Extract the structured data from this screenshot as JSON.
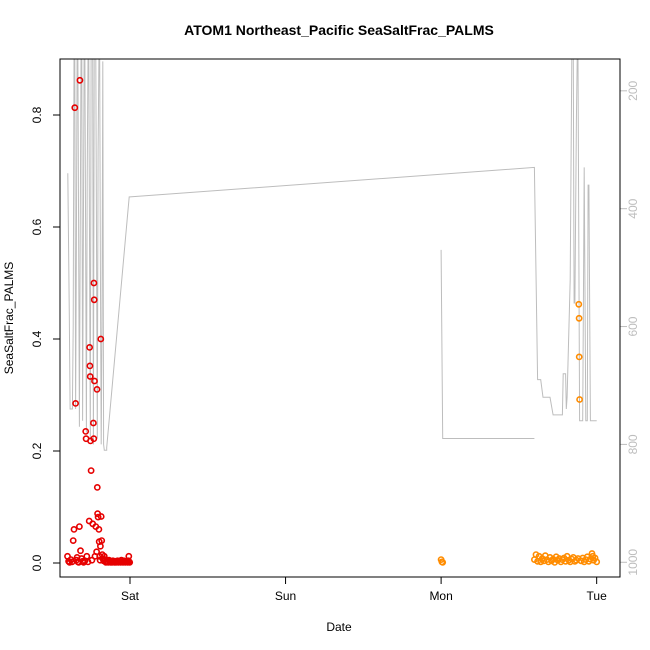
{
  "chart_data": {
    "type": "scatter",
    "title": "ATOM1 Northeast_Pacific SeaSaltFrac_PALMS",
    "xlabel": "Date",
    "ylabel": "SeaSaltFrac_PALMS",
    "x_unit": "days",
    "xlim": [
      -0.45,
      3.15
    ],
    "ylim": [
      -0.025,
      0.9
    ],
    "x_ticks": [
      {
        "value": 0,
        "label": "Sat"
      },
      {
        "value": 1,
        "label": "Sun"
      },
      {
        "value": 2,
        "label": "Mon"
      },
      {
        "value": 3,
        "label": "Tue"
      }
    ],
    "y_ticks": [
      {
        "value": 0.0,
        "label": "0.0"
      },
      {
        "value": 0.2,
        "label": "0.2"
      },
      {
        "value": 0.4,
        "label": "0.4"
      },
      {
        "value": 0.6,
        "label": "0.6"
      },
      {
        "value": 0.8,
        "label": "0.8"
      }
    ],
    "right_axis": {
      "ylim": [
        1025,
        146
      ],
      "color": "#bdbdbd",
      "ticks": [
        {
          "value": 200,
          "label": "200"
        },
        {
          "value": 400,
          "label": "400"
        },
        {
          "value": 600,
          "label": "600"
        },
        {
          "value": 800,
          "label": "800"
        },
        {
          "value": 1000,
          "label": "1000"
        }
      ]
    },
    "grid": false,
    "legend": "none",
    "series": [
      {
        "color": "#e60000",
        "points": [
          [
            -0.402,
            0.012
          ],
          [
            -0.395,
            0.003
          ],
          [
            -0.388,
            0.001
          ],
          [
            -0.38,
            0.006
          ],
          [
            -0.372,
            0.002
          ],
          [
            -0.365,
            0.04
          ],
          [
            -0.36,
            0.06
          ],
          [
            -0.355,
            0.813
          ],
          [
            -0.35,
            0.285
          ],
          [
            -0.345,
            0.005
          ],
          [
            -0.34,
            0.01
          ],
          [
            -0.335,
            0.002
          ],
          [
            -0.33,
            0.001
          ],
          [
            -0.325,
            0.065
          ],
          [
            -0.322,
            0.862
          ],
          [
            -0.318,
            0.022
          ],
          [
            -0.312,
            0.008
          ],
          [
            -0.305,
            0.003
          ],
          [
            -0.298,
            0.001
          ],
          [
            -0.29,
            0.004
          ],
          [
            -0.285,
            0.235
          ],
          [
            -0.282,
            0.222
          ],
          [
            -0.278,
            0.012
          ],
          [
            -0.27,
            0.002
          ],
          [
            -0.262,
            0.075
          ],
          [
            -0.26,
            0.385
          ],
          [
            -0.258,
            0.352
          ],
          [
            -0.256,
            0.333
          ],
          [
            -0.254,
            0.218
          ],
          [
            -0.25,
            0.165
          ],
          [
            -0.245,
            0.005
          ],
          [
            -0.24,
            0.07
          ],
          [
            -0.235,
            0.25
          ],
          [
            -0.233,
            0.222
          ],
          [
            -0.232,
            0.5
          ],
          [
            -0.23,
            0.47
          ],
          [
            -0.228,
            0.325
          ],
          [
            -0.225,
            0.012
          ],
          [
            -0.22,
            0.065
          ],
          [
            -0.215,
            0.02
          ],
          [
            -0.212,
            0.31
          ],
          [
            -0.21,
            0.135
          ],
          [
            -0.208,
            0.088
          ],
          [
            -0.205,
            0.082
          ],
          [
            -0.2,
            0.06
          ],
          [
            -0.198,
            0.038
          ],
          [
            -0.195,
            0.012
          ],
          [
            -0.192,
            0.005
          ],
          [
            -0.19,
            0.03
          ],
          [
            -0.188,
            0.4
          ],
          [
            -0.185,
            0.083
          ],
          [
            -0.182,
            0.04
          ],
          [
            -0.178,
            0.015
          ],
          [
            -0.175,
            0.008
          ],
          [
            -0.17,
            0.004
          ],
          [
            -0.165,
            0.012
          ],
          [
            -0.16,
            0.006
          ],
          [
            -0.155,
            0.001
          ],
          [
            -0.15,
            0.003
          ],
          [
            -0.145,
            0.002
          ],
          [
            -0.14,
            0.001
          ],
          [
            -0.135,
            0.005
          ],
          [
            -0.13,
            0.003
          ],
          [
            -0.125,
            0.001
          ],
          [
            -0.12,
            0.002
          ],
          [
            -0.115,
            0.001
          ],
          [
            -0.11,
            0.004
          ],
          [
            -0.105,
            0.002
          ],
          [
            -0.1,
            0.001
          ],
          [
            -0.095,
            0.003
          ],
          [
            -0.09,
            0.001
          ],
          [
            -0.085,
            0.002
          ],
          [
            -0.08,
            0.004
          ],
          [
            -0.075,
            0.001
          ],
          [
            -0.07,
            0.002
          ],
          [
            -0.065,
            0.003
          ],
          [
            -0.06,
            0.001
          ],
          [
            -0.055,
            0.005
          ],
          [
            -0.05,
            0.002
          ],
          [
            -0.045,
            0.001
          ],
          [
            -0.04,
            0.004
          ],
          [
            -0.035,
            0.002
          ],
          [
            -0.03,
            0.001
          ],
          [
            -0.025,
            0.003
          ],
          [
            -0.02,
            0.002
          ],
          [
            -0.015,
            0.001
          ],
          [
            -0.01,
            0.004
          ],
          [
            -0.008,
            0.012
          ],
          [
            -0.005,
            0.002
          ],
          [
            -0.002,
            0.001
          ]
        ]
      },
      {
        "color": "#ff8c00",
        "points": [
          [
            2.0,
            0.006
          ],
          [
            2.005,
            0.002
          ],
          [
            2.01,
            0.001
          ],
          [
            2.6,
            0.006
          ],
          [
            2.61,
            0.015
          ],
          [
            2.62,
            0.003
          ],
          [
            2.63,
            0.012
          ],
          [
            2.64,
            0.002
          ],
          [
            2.65,
            0.008
          ],
          [
            2.66,
            0.004
          ],
          [
            2.67,
            0.013
          ],
          [
            2.68,
            0.006
          ],
          [
            2.69,
            0.002
          ],
          [
            2.7,
            0.01
          ],
          [
            2.71,
            0.004
          ],
          [
            2.72,
            0.007
          ],
          [
            2.73,
            0.001
          ],
          [
            2.74,
            0.011
          ],
          [
            2.75,
            0.005
          ],
          [
            2.76,
            0.008
          ],
          [
            2.77,
            0.002
          ],
          [
            2.78,
            0.006
          ],
          [
            2.79,
            0.009
          ],
          [
            2.8,
            0.003
          ],
          [
            2.81,
            0.012
          ],
          [
            2.82,
            0.005
          ],
          [
            2.83,
            0.002
          ],
          [
            2.84,
            0.007
          ],
          [
            2.85,
            0.01
          ],
          [
            2.86,
            0.003
          ],
          [
            2.87,
            0.005
          ],
          [
            2.88,
            0.008
          ],
          [
            2.885,
            0.462
          ],
          [
            2.887,
            0.437
          ],
          [
            2.888,
            0.368
          ],
          [
            2.89,
            0.292
          ],
          [
            2.9,
            0.004
          ],
          [
            2.91,
            0.009
          ],
          [
            2.92,
            0.002
          ],
          [
            2.93,
            0.006
          ],
          [
            2.94,
            0.011
          ],
          [
            2.95,
            0.003
          ],
          [
            2.96,
            0.007
          ],
          [
            2.97,
            0.017
          ],
          [
            2.975,
            0.012
          ],
          [
            2.98,
            0.005
          ],
          [
            2.99,
            0.009
          ],
          [
            3.0,
            0.002
          ]
        ]
      }
    ],
    "altitude_line": {
      "color": "#bdbdbd",
      "segments": [
        [
          [
            -0.4,
            340
          ],
          [
            -0.39,
            580
          ],
          [
            -0.385,
            740
          ],
          [
            -0.37,
            740
          ],
          [
            -0.365,
            600
          ],
          [
            -0.36,
            146
          ],
          [
            -0.355,
            146
          ],
          [
            -0.35,
            740
          ],
          [
            -0.345,
            500
          ],
          [
            -0.34,
            146
          ],
          [
            -0.335,
            146
          ],
          [
            -0.325,
            770
          ],
          [
            -0.32,
            450
          ],
          [
            -0.315,
            146
          ],
          [
            -0.31,
            146
          ],
          [
            -0.305,
            760
          ],
          [
            -0.295,
            146
          ],
          [
            -0.29,
            146
          ],
          [
            -0.28,
            780
          ],
          [
            -0.275,
            350
          ],
          [
            -0.27,
            146
          ],
          [
            -0.265,
            146
          ],
          [
            -0.255,
            790
          ],
          [
            -0.25,
            146
          ],
          [
            -0.24,
            146
          ],
          [
            -0.235,
            800
          ],
          [
            -0.23,
            146
          ],
          [
            -0.22,
            146
          ],
          [
            -0.21,
            790
          ],
          [
            -0.205,
            300
          ],
          [
            -0.2,
            146
          ],
          [
            -0.195,
            146
          ],
          [
            -0.19,
            500
          ],
          [
            -0.185,
            800
          ],
          [
            -0.18,
            600
          ],
          [
            -0.175,
            150
          ],
          [
            -0.17,
            800
          ],
          [
            -0.165,
            810
          ],
          [
            -0.16,
            810
          ],
          [
            -0.15,
            810
          ],
          [
            -0.15,
            805
          ],
          [
            -0.005,
            380
          ],
          [
            0.0,
            380
          ],
          [
            2.6,
            330
          ],
          [
            2.62,
            690
          ],
          [
            2.64,
            690
          ],
          [
            2.655,
            720
          ],
          [
            2.7,
            720
          ],
          [
            2.72,
            750
          ],
          [
            2.78,
            750
          ],
          [
            2.785,
            680
          ],
          [
            2.8,
            680
          ],
          [
            2.805,
            740
          ],
          [
            2.81,
            720
          ],
          [
            2.83,
            520
          ],
          [
            2.84,
            146
          ],
          [
            2.85,
            146
          ],
          [
            2.855,
            560
          ],
          [
            2.86,
            560
          ],
          [
            2.87,
            250
          ],
          [
            2.875,
            146
          ],
          [
            2.88,
            146
          ],
          [
            2.89,
            760
          ],
          [
            2.91,
            760
          ],
          [
            2.92,
            330
          ],
          [
            2.93,
            760
          ],
          [
            2.94,
            760
          ],
          [
            2.945,
            360
          ],
          [
            2.95,
            360
          ],
          [
            2.96,
            760
          ],
          [
            3.0,
            760
          ]
        ],
        [
          [
            2.0,
            470
          ],
          [
            2.01,
            790
          ],
          [
            2.6,
            790
          ]
        ]
      ]
    }
  }
}
